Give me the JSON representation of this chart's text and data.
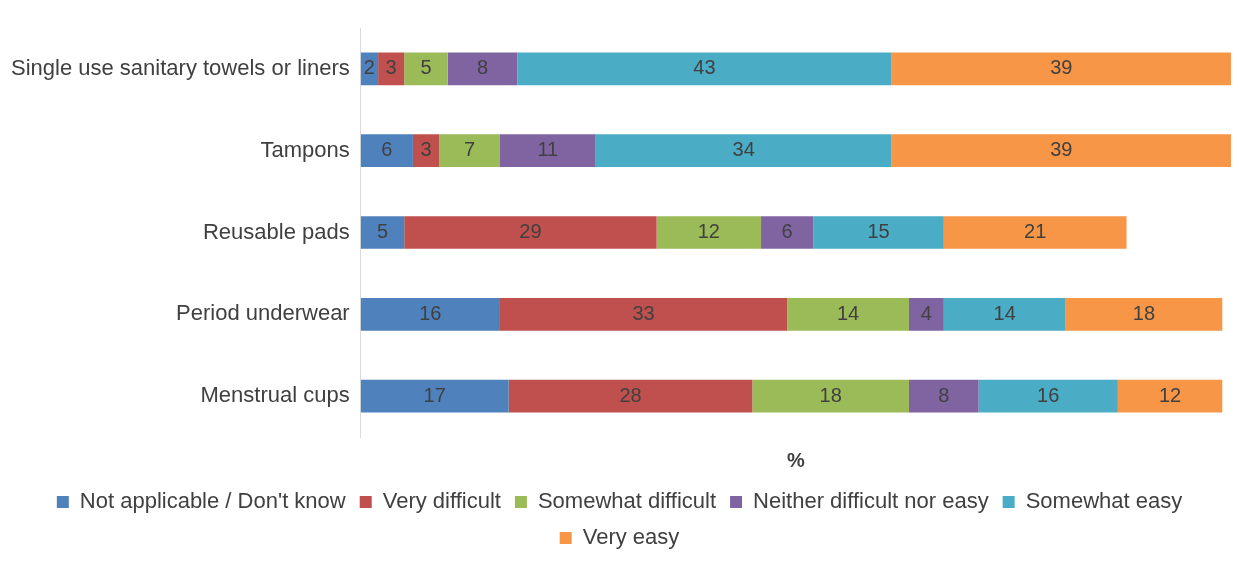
{
  "chart_data": {
    "type": "bar",
    "orientation": "horizontal",
    "stacked": true,
    "data_labels": true,
    "legend": "bottom",
    "xlabel": "%",
    "categories": [
      "Single use sanitary towels or liners",
      "Tampons",
      "Reusable pads",
      "Period underwear",
      "Menstrual cups"
    ],
    "series": [
      {
        "name": "Not applicable / Don't know",
        "color": "#4f81bd",
        "values": [
          2,
          6,
          5,
          16,
          17
        ]
      },
      {
        "name": "Very difficult",
        "color": "#c0504d",
        "values": [
          3,
          3,
          29,
          33,
          28
        ]
      },
      {
        "name": "Somewhat difficult",
        "color": "#9bbb59",
        "values": [
          5,
          7,
          12,
          14,
          18
        ]
      },
      {
        "name": "Neither difficult nor easy",
        "color": "#8064a2",
        "values": [
          8,
          11,
          6,
          4,
          8
        ]
      },
      {
        "name": "Somewhat easy",
        "color": "#4bacc6",
        "values": [
          43,
          34,
          15,
          14,
          16
        ]
      },
      {
        "name": "Very easy",
        "color": "#f79646",
        "values": [
          39,
          39,
          21,
          18,
          12
        ]
      }
    ]
  }
}
